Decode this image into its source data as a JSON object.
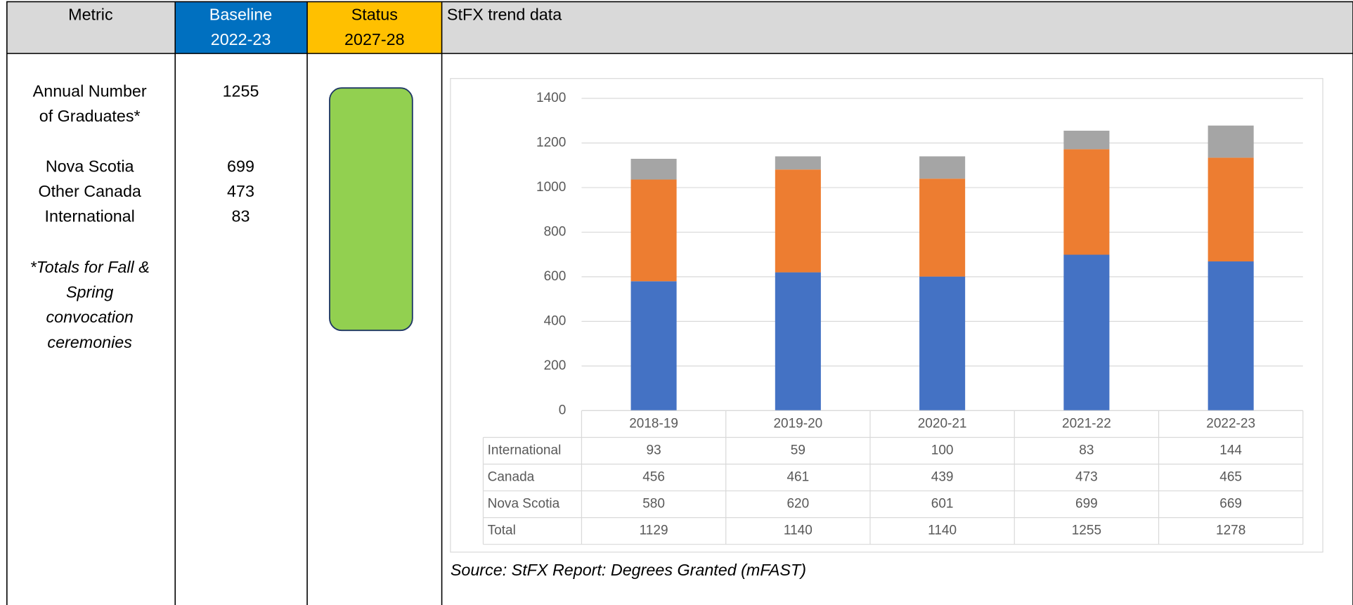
{
  "header": {
    "metric": "Metric",
    "baseline": [
      "Baseline",
      "2022-23"
    ],
    "status": [
      "Status",
      "2027-28"
    ],
    "trend": "StFX trend data"
  },
  "metric": {
    "name": [
      "Annual Number",
      "of Graduates*"
    ],
    "breakdown": [
      "Nova Scotia",
      "Other Canada",
      "International"
    ],
    "note": [
      "*Totals for Fall &",
      "Spring",
      "convocation",
      "ceremonies"
    ]
  },
  "baseline": {
    "total": 1255,
    "breakdown": [
      699,
      473,
      83
    ]
  },
  "status": {
    "color": "#92d050"
  },
  "chart_data": {
    "type": "bar",
    "stacked": true,
    "categories": [
      "2018-19",
      "2019-20",
      "2020-21",
      "2021-22",
      "2022-23"
    ],
    "series": [
      {
        "name": "Nova Scotia",
        "color": "#4472c4",
        "values": [
          580,
          620,
          601,
          699,
          669
        ]
      },
      {
        "name": "Canada",
        "color": "#ed7d31",
        "values": [
          456,
          461,
          439,
          473,
          465
        ]
      },
      {
        "name": "International",
        "color": "#a5a5a5",
        "values": [
          93,
          59,
          100,
          83,
          144
        ]
      }
    ],
    "ylim": [
      0,
      1400
    ],
    "yticks": [
      0,
      200,
      400,
      600,
      800,
      1000,
      1200,
      1400
    ],
    "grid": true,
    "data_table": {
      "total_label": "Total",
      "totals": [
        1129,
        1140,
        1140,
        1255,
        1278
      ]
    }
  },
  "source": "Source: StFX Report: Degrees Granted (mFAST)"
}
